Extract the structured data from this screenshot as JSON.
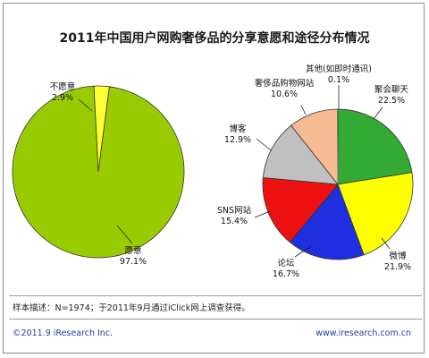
{
  "chart_data": [
    {
      "type": "pie",
      "title": "2011年中国用户网购奢侈品的分享意愿和途径分布情况",
      "slices": [
        {
          "label": "愿意",
          "value": 97.1,
          "display": "97.1%",
          "color": "#99cc00"
        },
        {
          "label": "不愿意",
          "value": 2.9,
          "display": "2.9%",
          "color": "#ffff33"
        }
      ]
    },
    {
      "type": "pie",
      "slices": [
        {
          "label": "聚会聊天",
          "value": 22.5,
          "display": "22.5%",
          "color": "#33aa33"
        },
        {
          "label": "微博",
          "value": 21.9,
          "display": "21.9%",
          "color": "#ffff00"
        },
        {
          "label": "论坛",
          "value": 16.7,
          "display": "16.7%",
          "color": "#1f2fe0"
        },
        {
          "label": "SNS网站",
          "value": 15.4,
          "display": "15.4%",
          "color": "#ee1111"
        },
        {
          "label": "博客",
          "value": 12.9,
          "display": "12.9%",
          "color": "#c0c0c0"
        },
        {
          "label": "奢侈品购物网站",
          "value": 10.6,
          "display": "10.6%",
          "color": "#f7bb93"
        },
        {
          "label": "其他(如即时通讯)",
          "value": 0.1,
          "display": "0.1%",
          "color": "#7f7f7f"
        }
      ]
    }
  ],
  "footer": {
    "note": "样本描述：N=1974；于2011年9月通过iClick网上调查获得。",
    "copyright": "©2011.9 iResearch Inc.",
    "website": "www.iresearch.com.cn"
  }
}
